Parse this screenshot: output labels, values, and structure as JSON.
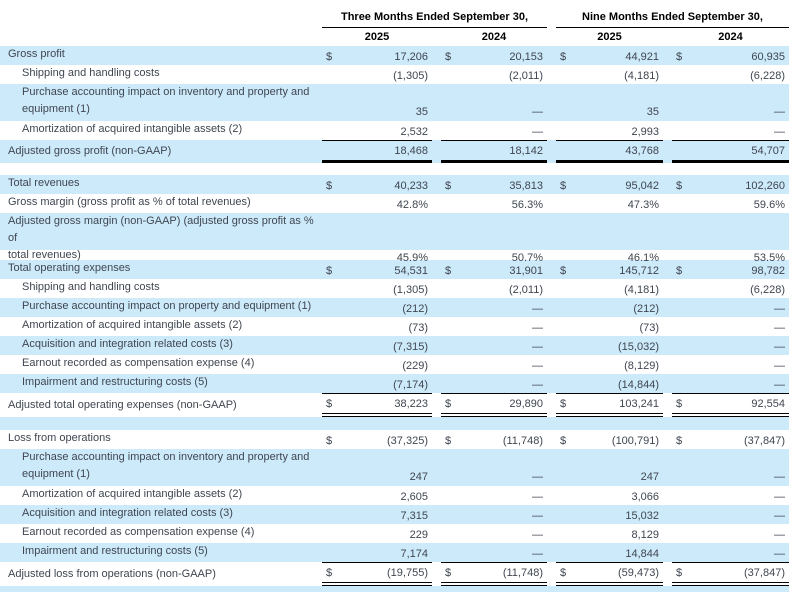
{
  "colors": {
    "row_highlight": "#cdeafb",
    "text": "#3f4650",
    "header_text": "#000000",
    "rule": "#000000"
  },
  "table": {
    "currency_symbol": "$",
    "col_headers": {
      "group1": "Three Months Ended September 30,",
      "group2": "Nine Months Ended September 30,",
      "years": [
        "2025",
        "2024",
        "2025",
        "2024"
      ]
    },
    "rows": [
      {
        "label": "Gross profit",
        "bg": "blue",
        "dollar": true,
        "values": [
          "17,206",
          "20,153",
          "44,921",
          "60,935"
        ]
      },
      {
        "label": "Shipping and handling costs",
        "indent": true,
        "bg": "white",
        "values": [
          "(1,305)",
          "(2,011)",
          "(4,181)",
          "(6,228)"
        ]
      },
      {
        "label": "Purchase accounting impact on inventory and property and",
        "label2": "equipment (1)",
        "indent": true,
        "bg": "blue",
        "values": [
          "35",
          "—",
          "35",
          "—"
        ]
      },
      {
        "label": "Amortization of acquired intangible assets (2)",
        "indent": true,
        "bg": "white",
        "values": [
          "2,532",
          "—",
          "2,993",
          "—"
        ]
      },
      {
        "label": "Adjusted gross profit (non-GAAP)",
        "bg": "blue",
        "top_border": true,
        "bottom": "thick",
        "values": [
          "18,468",
          "18,142",
          "43,768",
          "54,707"
        ]
      },
      {
        "type": "spacer",
        "bg": "white",
        "height": 12
      },
      {
        "label": "Total revenues",
        "bg": "blue",
        "dollar": true,
        "values": [
          "40,233",
          "35,813",
          "95,042",
          "102,260"
        ]
      },
      {
        "label": "Gross margin (gross profit as % of total revenues)",
        "bg": "white",
        "values": [
          "42.8%",
          "56.3%",
          "47.3%",
          "59.6%"
        ]
      },
      {
        "label": "Adjusted gross margin (non-GAAP) (adjusted gross profit as % of",
        "label2": "total revenues)",
        "bg": "blue",
        "values": [
          "45.9%",
          "50.7%",
          "46.1%",
          "53.5%"
        ]
      },
      {
        "type": "spacer",
        "bg": "white",
        "height": 10
      },
      {
        "label": "Total operating expenses",
        "bg": "blue",
        "dollar": true,
        "values": [
          "54,531",
          "31,901",
          "145,712",
          "98,782"
        ]
      },
      {
        "label": "Shipping and handling costs",
        "indent": true,
        "bg": "white",
        "values": [
          "(1,305)",
          "(2,011)",
          "(4,181)",
          "(6,228)"
        ]
      },
      {
        "label": "Purchase accounting impact on property and equipment (1)",
        "indent": true,
        "bg": "blue",
        "values": [
          "(212)",
          "—",
          "(212)",
          "—"
        ]
      },
      {
        "label": "Amortization of acquired intangible assets (2)",
        "indent": true,
        "bg": "white",
        "values": [
          "(73)",
          "—",
          "(73)",
          "—"
        ]
      },
      {
        "label": "Acquisition and integration related costs (3)",
        "indent": true,
        "bg": "blue",
        "values": [
          "(7,315)",
          "—",
          "(15,032)",
          "—"
        ]
      },
      {
        "label": "Earnout recorded as compensation expense (4)",
        "indent": true,
        "bg": "white",
        "values": [
          "(229)",
          "—",
          "(8,129)",
          "—"
        ]
      },
      {
        "label": "Impairment and restructuring costs (5)",
        "indent": true,
        "bg": "blue",
        "values": [
          "(7,174)",
          "—",
          "(14,844)",
          "—"
        ]
      },
      {
        "label": "Adjusted total operating expenses (non-GAAP)",
        "bg": "white",
        "dollar": true,
        "top_border": true,
        "bottom": "double",
        "values": [
          "38,223",
          "29,890",
          "103,241",
          "92,554"
        ]
      },
      {
        "type": "spacer",
        "bg": "blue",
        "height": 13
      },
      {
        "label": "Loss from operations",
        "bg": "white",
        "dollar": true,
        "values": [
          "(37,325)",
          "(11,748)",
          "(100,791)",
          "(37,847)"
        ]
      },
      {
        "label": "Purchase accounting impact on inventory and property and",
        "label2": "equipment (1)",
        "indent": true,
        "bg": "blue",
        "values": [
          "247",
          "—",
          "247",
          "—"
        ]
      },
      {
        "label": "Amortization of acquired intangible assets (2)",
        "indent": true,
        "bg": "white",
        "values": [
          "2,605",
          "—",
          "3,066",
          "—"
        ]
      },
      {
        "label": "Acquisition and integration related costs (3)",
        "indent": true,
        "bg": "blue",
        "values": [
          "7,315",
          "—",
          "15,032",
          "—"
        ]
      },
      {
        "label": "Earnout recorded as compensation expense (4)",
        "indent": true,
        "bg": "white",
        "values": [
          "229",
          "—",
          "8,129",
          "—"
        ]
      },
      {
        "label": "Impairment and restructuring costs (5)",
        "indent": true,
        "bg": "blue",
        "values": [
          "7,174",
          "—",
          "14,844",
          "—"
        ]
      },
      {
        "label": "Adjusted loss from operations (non-GAAP)",
        "bg": "white",
        "dollar": true,
        "top_border": true,
        "bottom": "double",
        "values": [
          "(19,755)",
          "(11,748)",
          "(59,473)",
          "(37,847)"
        ]
      },
      {
        "type": "spacer",
        "bg": "blue",
        "height": 10
      }
    ]
  }
}
